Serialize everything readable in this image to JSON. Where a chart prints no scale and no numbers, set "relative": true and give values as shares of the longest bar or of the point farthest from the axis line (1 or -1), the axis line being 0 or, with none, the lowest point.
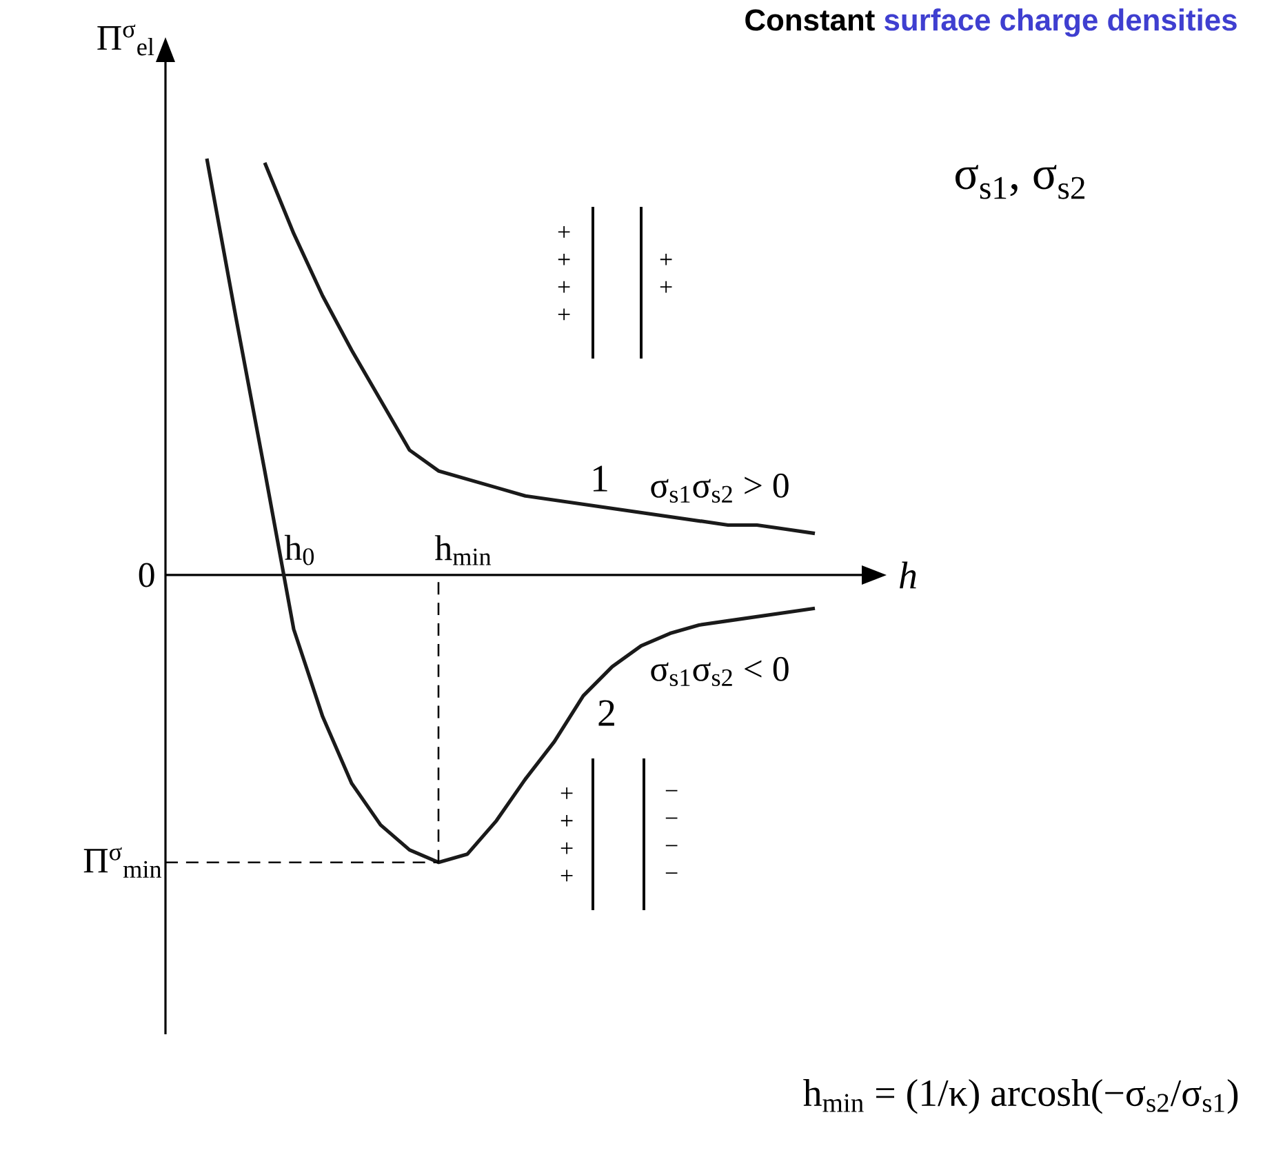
{
  "chart_data": {
    "type": "line",
    "relative": true,
    "title": "Constant",
    "subtitle": "surface charge densities",
    "xlabel": "h",
    "ylabel": "Π$^{σ}$$_{el}$",
    "categories": [
      null,
      null,
      null,
      null,
      null,
      null,
      null,
      null,
      null,
      null,
      null,
      null,
      null,
      null,
      null,
      null,
      null,
      null,
      null,
      null,
      null,
      null
    ],
    "series": [
      {
        "name": "1",
        "color": "#1a1a1a",
        "values": [
          null,
          null,
          0.99,
          0.82,
          0.67,
          0.54,
          0.42,
          0.3,
          0.25,
          0.23,
          0.21,
          0.19,
          0.18,
          0.17,
          0.16,
          0.15,
          0.14,
          0.13,
          0.12,
          0.12,
          0.11,
          0.1
        ]
      },
      {
        "name": "2",
        "color": "#1a1a1a",
        "values": [
          1.0,
          0.62,
          0.25,
          -0.13,
          -0.34,
          -0.5,
          -0.6,
          -0.66,
          -0.69,
          -0.67,
          -0.59,
          -0.49,
          -0.4,
          -0.29,
          -0.22,
          -0.17,
          -0.14,
          -0.12,
          -0.11,
          -0.1,
          -0.09,
          -0.08
        ]
      }
    ],
    "ref_lines": [
      {
        "axis": "y",
        "value": -0.69,
        "label": "Π$^{σ}$$_{min}$",
        "line_style": "dashed"
      }
    ],
    "line_style": "solid",
    "marker": "none",
    "annotations": [
      "0",
      "h$_{0}$",
      "h$_{min}$",
      "σ$_{s1}$σ$_{s2}$ > 0",
      "σ$_{s1}$σ$_{s2}$ < 0",
      "σ$_{s1}$, σ$_{s2}$",
      "h$_{min}$ = (1/κ) arcosh(−σ$_{s2}$/σ$_{s1}$)",
      "+ + + +",
      "+ +",
      "+ + + +",
      "− − − −"
    ]
  }
}
